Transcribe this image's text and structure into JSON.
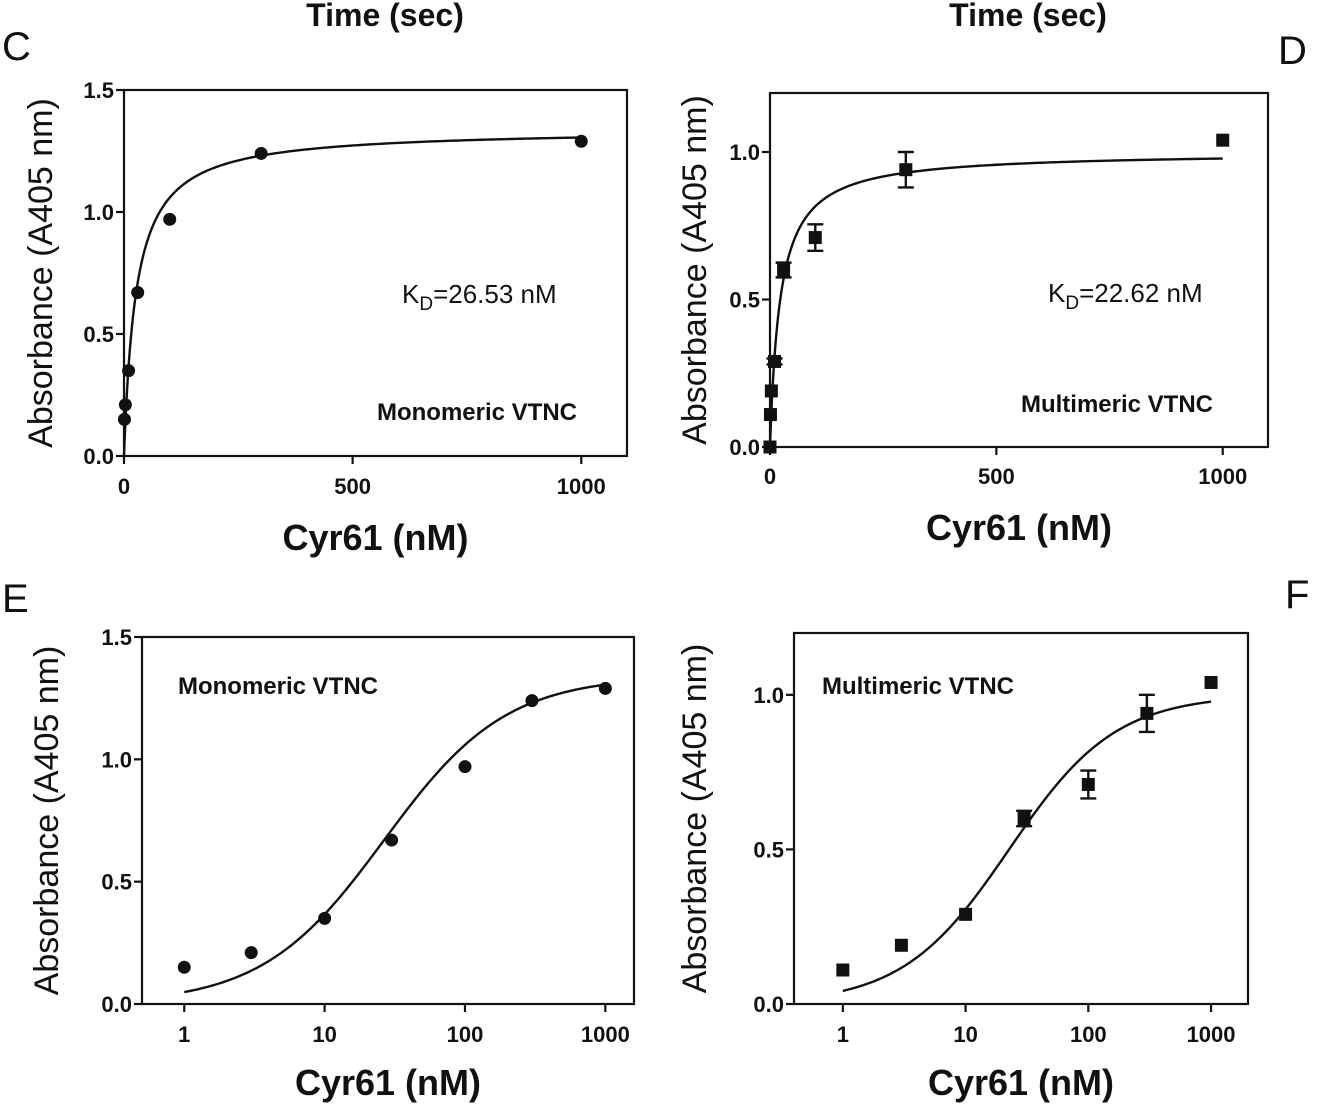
{
  "top_cut_labels": [
    "Time (sec)",
    "Time (sec)"
  ],
  "panel_letters": {
    "C": "C",
    "D": "D",
    "E": "E",
    "F": "F"
  },
  "chart_data": [
    {
      "id": "C",
      "type": "scatter",
      "xscale": "linear",
      "xlim": [
        0,
        1100
      ],
      "ylim": [
        0,
        1.5
      ],
      "xticks": [
        0,
        500,
        1000
      ],
      "xtick_labels": [
        "0",
        "500",
        "1000"
      ],
      "yticks": [
        0,
        0.5,
        1.0,
        1.5
      ],
      "ytick_labels": [
        "0.0",
        "0.5",
        "1.0",
        "1.5"
      ],
      "xlabel": "Cyr61 (nM)",
      "ylabel": "Absorbance (A405 nm)",
      "marker": "circle",
      "annotation": "Monomeric VTNC",
      "kd": {
        "prefix": "K",
        "sub": "D",
        "text": "=26.53 nM"
      },
      "fit": {
        "model": "hyperbolic",
        "bmax": 1.34,
        "kd": 26.53
      },
      "series": [
        {
          "x": [
            1,
            3,
            10,
            30,
            100,
            300,
            1000
          ],
          "y": [
            0.15,
            0.21,
            0.35,
            0.67,
            0.97,
            1.24,
            1.29
          ],
          "err": [
            0,
            0,
            0,
            0,
            0,
            0,
            0
          ]
        }
      ]
    },
    {
      "id": "D",
      "type": "scatter",
      "xscale": "linear",
      "xlim": [
        0,
        1100
      ],
      "ylim": [
        0,
        1.2
      ],
      "xticks": [
        0,
        500,
        1000
      ],
      "xtick_labels": [
        "0",
        "500",
        "1000"
      ],
      "yticks": [
        0,
        0.5,
        1.0
      ],
      "ytick_labels": [
        "0.0",
        "0.5",
        "1.0"
      ],
      "xlabel": "Cyr61 (nM)",
      "ylabel": "Absorbance (A405 nm)",
      "marker": "square",
      "annotation": "Multimeric VTNC",
      "kd": {
        "prefix": "K",
        "sub": "D",
        "text": "=22.62 nM"
      },
      "fit": {
        "model": "hyperbolic",
        "bmax": 1.0,
        "kd": 22.62
      },
      "series": [
        {
          "x": [
            0,
            1,
            3,
            10,
            30,
            100,
            300,
            1000
          ],
          "y": [
            0.0,
            0.11,
            0.19,
            0.29,
            0.6,
            0.71,
            0.94,
            1.04
          ],
          "err": [
            0,
            0,
            0,
            0.01,
            0.025,
            0.045,
            0.06,
            0
          ]
        }
      ]
    },
    {
      "id": "E",
      "type": "scatter",
      "xscale": "log",
      "xlim": [
        0.5,
        1600
      ],
      "ylim": [
        0,
        1.5
      ],
      "xticks": [
        1,
        10,
        100,
        1000
      ],
      "xtick_labels": [
        "1",
        "10",
        "100",
        "1000"
      ],
      "yticks": [
        0,
        0.5,
        1.0,
        1.5
      ],
      "ytick_labels": [
        "0.0",
        "0.5",
        "1.0",
        "1.5"
      ],
      "xlabel": "Cyr61 (nM)",
      "ylabel": "Absorbance (A405 nm)",
      "marker": "circle",
      "annotation": "Monomeric VTNC",
      "fit": {
        "model": "hyperbolic",
        "bmax": 1.34,
        "kd": 26.53
      },
      "series": [
        {
          "x": [
            1,
            3,
            10,
            30,
            100,
            300,
            1000
          ],
          "y": [
            0.15,
            0.21,
            0.35,
            0.67,
            0.97,
            1.24,
            1.29
          ],
          "err": [
            0,
            0,
            0,
            0,
            0,
            0,
            0
          ]
        }
      ]
    },
    {
      "id": "F",
      "type": "scatter",
      "xscale": "log",
      "xlim": [
        0.4,
        2000
      ],
      "ylim": [
        0,
        1.2
      ],
      "xticks": [
        1,
        10,
        100,
        1000
      ],
      "xtick_labels": [
        "1",
        "10",
        "100",
        "1000"
      ],
      "yticks": [
        0,
        0.5,
        1.0
      ],
      "ytick_labels": [
        "0.0",
        "0.5",
        "1.0"
      ],
      "xlabel": "Cyr61 (nM)",
      "ylabel": "Absorbance (A405 nm)",
      "marker": "square",
      "annotation": "Multimeric VTNC",
      "fit": {
        "model": "hyperbolic",
        "bmax": 1.0,
        "kd": 22.62
      },
      "series": [
        {
          "x": [
            1,
            3,
            10,
            30,
            100,
            300,
            1000
          ],
          "y": [
            0.11,
            0.19,
            0.29,
            0.6,
            0.71,
            0.94,
            1.04
          ],
          "err": [
            0,
            0,
            0,
            0.025,
            0.045,
            0.06,
            0
          ]
        }
      ]
    }
  ]
}
